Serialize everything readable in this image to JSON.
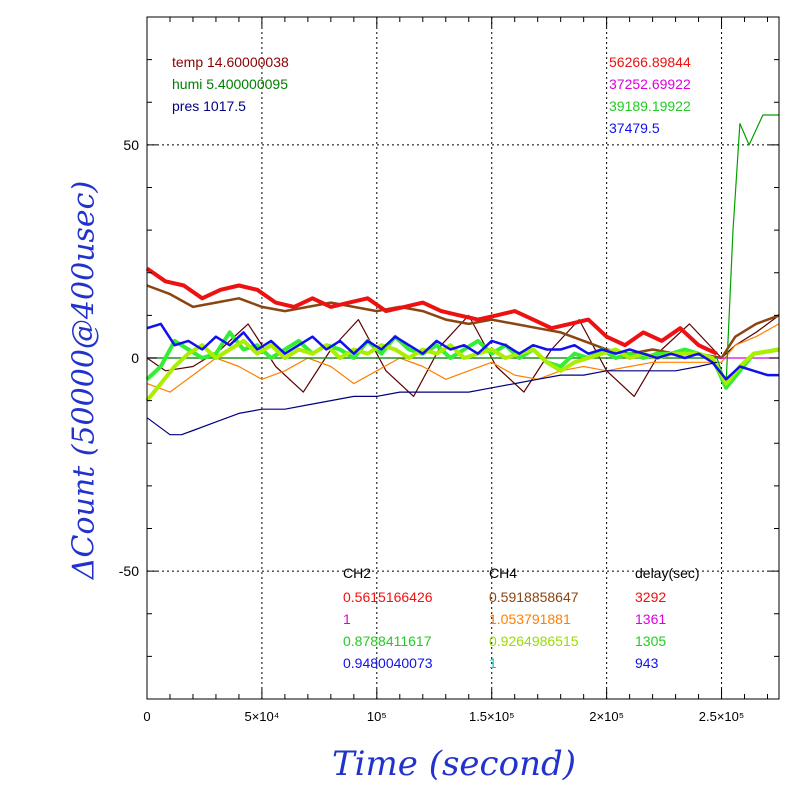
{
  "chart_data": {
    "type": "line",
    "xlabel": "Time (second)",
    "ylabel": "ΔCount (50000@400usec)",
    "xlim": [
      0,
      275000
    ],
    "ylim": [
      -80,
      80
    ],
    "x_ticks": [
      {
        "value": 0,
        "label": "0"
      },
      {
        "value": 50000,
        "label": "5×10⁴"
      },
      {
        "value": 100000,
        "label": "10⁵"
      },
      {
        "value": 150000,
        "label": "1.5×10⁵"
      },
      {
        "value": 200000,
        "label": "2×10⁵"
      },
      {
        "value": 250000,
        "label": "2.5×10⁵"
      }
    ],
    "y_ticks": [
      {
        "value": 50,
        "label": "50"
      },
      {
        "value": 0,
        "label": "0"
      },
      {
        "value": -50,
        "label": "-50"
      }
    ],
    "grid": true,
    "series": [
      {
        "color": "#5a0000",
        "x": [
          0,
          8000,
          20000,
          32000,
          44000,
          56000,
          68000,
          80000,
          92000,
          104000,
          116000,
          128000,
          140000,
          152000,
          164000,
          176000,
          188000,
          200000,
          212000,
          224000,
          236000,
          250000,
          256000,
          265000,
          275000
        ],
        "y": [
          0,
          -3,
          -2,
          2,
          8,
          -2,
          -8,
          2,
          9,
          -3,
          -9,
          3,
          10,
          -2,
          -8,
          2,
          9,
          -3,
          -9,
          2,
          8,
          0,
          3,
          6,
          10
        ]
      },
      {
        "color": "#ff8000",
        "x": [
          0,
          10000,
          20000,
          30000,
          40000,
          50000,
          60000,
          70000,
          80000,
          90000,
          100000,
          110000,
          120000,
          130000,
          140000,
          150000,
          160000,
          170000,
          180000,
          190000,
          200000,
          210000,
          220000,
          230000,
          240000,
          250000,
          256000,
          265000,
          275000
        ],
        "y": [
          -6,
          -8,
          -4,
          0,
          -2,
          -5,
          -3,
          0,
          -2,
          -6,
          -3,
          0,
          -2,
          -5,
          -3,
          -1,
          -4,
          -5,
          -3,
          -2,
          -3,
          -2,
          -1,
          -1,
          -1,
          -1,
          3,
          5,
          8
        ]
      },
      {
        "color": "#8b4513",
        "x": [
          0,
          10000,
          20000,
          30000,
          40000,
          50000,
          60000,
          70000,
          80000,
          90000,
          100000,
          110000,
          120000,
          130000,
          140000,
          150000,
          160000,
          170000,
          180000,
          190000,
          200000,
          210000,
          220000,
          230000,
          240000,
          250000,
          256000,
          265000,
          275000
        ],
        "y": [
          17,
          15,
          12,
          13,
          14,
          12,
          11,
          12,
          13,
          12,
          11,
          12,
          11,
          9,
          8,
          9,
          8,
          7,
          6,
          4,
          2,
          1,
          2,
          1,
          1,
          0,
          5,
          8,
          10
        ]
      },
      {
        "color": "#ee1111",
        "x": [
          0,
          8000,
          16000,
          24000,
          32000,
          40000,
          48000,
          56000,
          64000,
          72000,
          80000,
          88000,
          96000,
          104000,
          112000,
          120000,
          128000,
          136000,
          144000,
          152000,
          160000,
          168000,
          176000,
          184000,
          192000,
          200000,
          208000,
          216000,
          224000,
          232000,
          240000,
          248000
        ],
        "y": [
          21,
          18,
          17,
          14,
          16,
          17,
          16,
          13,
          12,
          14,
          12,
          13,
          14,
          11,
          12,
          13,
          11,
          10,
          9,
          10,
          11,
          9,
          7,
          8,
          9,
          5,
          3,
          6,
          4,
          7,
          3,
          1
        ]
      },
      {
        "color": "#dd00dd",
        "x": [
          0,
          275000
        ],
        "y": [
          0,
          0
        ]
      },
      {
        "color": "#00a000",
        "x": [
          0,
          248000,
          252000,
          255000,
          258000,
          262000,
          268000,
          275000
        ],
        "y": [
          0,
          0,
          -6,
          30,
          55,
          50,
          57,
          57
        ]
      },
      {
        "color": "#33ee33",
        "x": [
          0,
          6000,
          12000,
          18000,
          24000,
          30000,
          36000,
          42000,
          48000,
          54000,
          60000,
          66000,
          72000,
          78000,
          84000,
          90000,
          96000,
          102000,
          108000,
          114000,
          120000,
          126000,
          132000,
          138000,
          144000,
          150000,
          156000,
          162000,
          168000,
          174000,
          180000,
          186000,
          192000,
          198000,
          204000,
          210000,
          216000,
          222000,
          228000,
          234000,
          240000,
          246000,
          252000,
          258000,
          264000,
          275000
        ],
        "y": [
          -5,
          -2,
          4,
          2,
          0,
          1,
          6,
          2,
          3,
          0,
          2,
          4,
          1,
          3,
          2,
          0,
          4,
          1,
          5,
          2,
          1,
          3,
          0,
          2,
          4,
          1,
          3,
          0,
          2,
          -1,
          -2,
          1,
          0,
          2,
          0,
          1,
          0,
          1,
          1,
          2,
          1,
          0,
          -7,
          -3,
          1,
          2
        ]
      },
      {
        "color": "#aaee00",
        "x": [
          0,
          6000,
          12000,
          18000,
          24000,
          30000,
          36000,
          42000,
          48000,
          54000,
          60000,
          66000,
          72000,
          78000,
          84000,
          90000,
          96000,
          102000,
          108000,
          114000,
          120000,
          126000,
          132000,
          138000,
          144000,
          150000,
          156000,
          162000,
          168000,
          174000,
          180000,
          186000,
          192000,
          198000,
          204000,
          210000,
          216000,
          222000,
          228000,
          234000,
          240000,
          246000,
          252000,
          258000,
          264000,
          275000
        ],
        "y": [
          -10,
          -6,
          -2,
          1,
          3,
          0,
          2,
          4,
          1,
          3,
          0,
          2,
          1,
          3,
          0,
          2,
          1,
          3,
          2,
          0,
          2,
          1,
          3,
          0,
          1,
          2,
          0,
          1,
          2,
          -1,
          -3,
          -1,
          0,
          1,
          2,
          0,
          1,
          0,
          1,
          1,
          1,
          0,
          -6,
          -2,
          1,
          2
        ]
      },
      {
        "color": "#1111ee",
        "x": [
          0,
          6000,
          12000,
          18000,
          24000,
          30000,
          36000,
          42000,
          48000,
          54000,
          60000,
          66000,
          72000,
          78000,
          84000,
          90000,
          96000,
          102000,
          108000,
          114000,
          120000,
          126000,
          132000,
          138000,
          144000,
          150000,
          156000,
          162000,
          168000,
          174000,
          180000,
          186000,
          192000,
          198000,
          204000,
          210000,
          216000,
          222000,
          228000,
          234000,
          240000,
          246000,
          252000,
          258000,
          264000,
          270000,
          275000
        ],
        "y": [
          7,
          8,
          3,
          4,
          2,
          5,
          3,
          6,
          2,
          4,
          1,
          3,
          5,
          2,
          4,
          1,
          4,
          2,
          5,
          3,
          1,
          4,
          2,
          3,
          1,
          4,
          3,
          1,
          3,
          2,
          2,
          3,
          1,
          2,
          1,
          2,
          1,
          0,
          1,
          0,
          1,
          -1,
          -5,
          -2,
          -3,
          -4,
          -4
        ]
      },
      {
        "color": "#000080",
        "x": [
          0,
          5000,
          10000,
          15000,
          20000,
          30000,
          40000,
          50000,
          60000,
          70000,
          80000,
          90000,
          100000,
          110000,
          120000,
          130000,
          140000,
          150000,
          160000,
          170000,
          180000,
          190000,
          200000,
          210000,
          220000,
          230000,
          240000,
          248000
        ],
        "y": [
          -14,
          -16,
          -18,
          -18,
          -17,
          -15,
          -13,
          -12,
          -12,
          -11,
          -10,
          -9,
          -9,
          -8,
          -8,
          -8,
          -8,
          -7,
          -6,
          -5,
          -4,
          -4,
          -3,
          -3,
          -3,
          -3,
          -2,
          -1
        ]
      }
    ]
  },
  "annotations": {
    "top_left": [
      {
        "text": "temp 14.60000038",
        "color": "#8b0000"
      },
      {
        "text": "humi 5.400000095",
        "color": "#008000"
      },
      {
        "text": "pres 1017.5",
        "color": "#000080"
      }
    ],
    "top_right": [
      {
        "text": "56266.89844",
        "color": "#ee1111"
      },
      {
        "text": "37252.69922",
        "color": "#dd00dd"
      },
      {
        "text": "39189.19922",
        "color": "#22cc22"
      },
      {
        "text": "37479.5",
        "color": "#1111ee"
      }
    ],
    "table": {
      "headers": [
        "CH2",
        "CH4",
        "delay(sec)"
      ],
      "col1": [
        {
          "text": "0.5615166426",
          "color": "#ee1111"
        },
        {
          "text": "1",
          "color": "#dd00dd"
        },
        {
          "text": "0.8788411617",
          "color": "#22cc22"
        },
        {
          "text": "0.9480040073",
          "color": "#1111ee"
        }
      ],
      "col2": [
        {
          "text": "0.5918858647",
          "color": "#8b4513"
        },
        {
          "text": "1.053791881",
          "color": "#ff8000"
        },
        {
          "text": "0.9264986515",
          "color": "#99dd00"
        },
        {
          "text": "1",
          "color": "#00cccc"
        }
      ],
      "col3": [
        {
          "text": "3292",
          "color": "#ee1111"
        },
        {
          "text": "1361",
          "color": "#dd00dd"
        },
        {
          "text": "1305",
          "color": "#22cc22"
        },
        {
          "text": "943",
          "color": "#1111ee"
        }
      ]
    }
  }
}
